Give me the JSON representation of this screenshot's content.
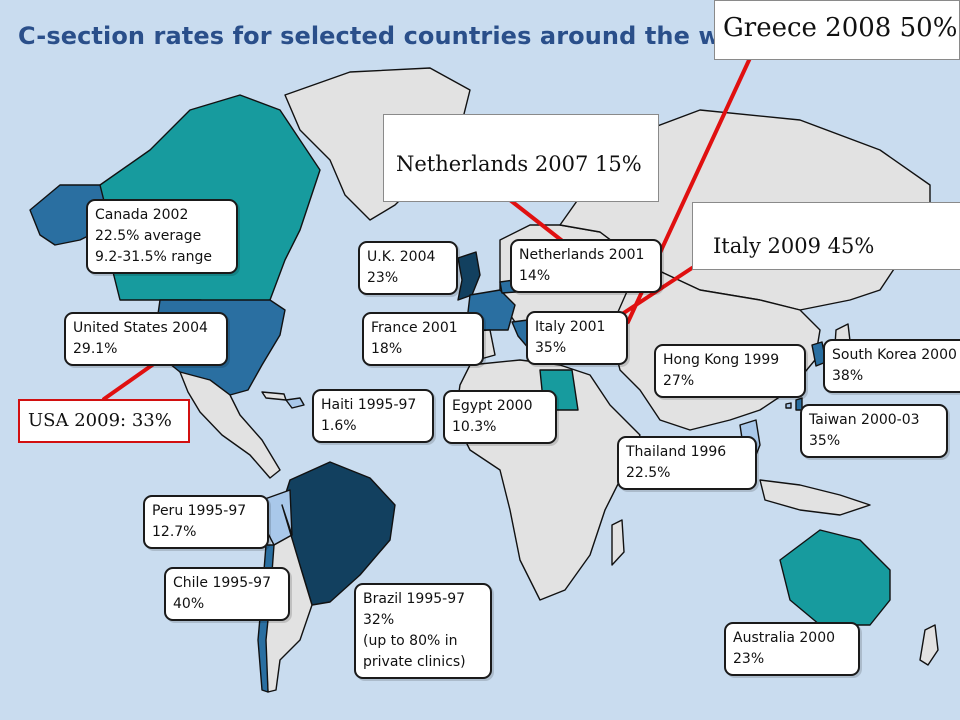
{
  "title": "C-section rates for selected countries around the world",
  "colors": {
    "ocean": "#c9dcef",
    "land_no_data": "#e2e2e2",
    "border": "#111111",
    "darkest_blue": "#12405f",
    "dark_blue": "#2a6fa1",
    "mid_blue": "#3d86b8",
    "teal": "#179b9e",
    "light_blue": "#a9c8ea",
    "pointer_red": "#e01010"
  },
  "callouts": {
    "canada": [
      "Canada 2002",
      "22.5% average",
      "9.2-31.5% range"
    ],
    "usa": [
      "United States 2004",
      "29.1%"
    ],
    "uk": [
      "U.K. 2004",
      "23%"
    ],
    "netherlands": [
      "Netherlands 2001",
      "14%"
    ],
    "france": [
      "France 2001",
      "18%"
    ],
    "italy": [
      "Italy 2001",
      "35%"
    ],
    "haiti": [
      "Haiti 1995-97",
      "1.6%"
    ],
    "egypt": [
      "Egypt 2000",
      "10.3%"
    ],
    "hongkong": [
      "Hong Kong 1999",
      "27%"
    ],
    "southkorea": [
      "South Korea 2000",
      "38%"
    ],
    "taiwan": [
      "Taiwan 2000-03",
      "35%"
    ],
    "thailand": [
      "Thailand 1996",
      "22.5%"
    ],
    "peru": [
      "Peru 1995-97",
      "12.7%"
    ],
    "chile": [
      "Chile 1995-97",
      "40%"
    ],
    "brazil": [
      "Brazil 1995-97",
      "32%",
      "(up to 80% in",
      "private clinics)"
    ],
    "australia": [
      "Australia 2000",
      "23%"
    ]
  },
  "notes": {
    "greece": "Greece 2008 50%",
    "netherlands": "Netherlands 2007  15%",
    "italy": "Italy 2009 45%",
    "usa": "USA 2009: 33%"
  }
}
